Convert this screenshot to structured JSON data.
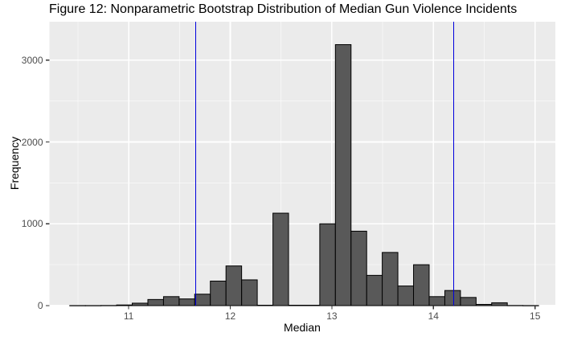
{
  "title": "Figure 12: Nonparametric Bootstrap Distribution of Median Gun Violence Incidents",
  "axes": {
    "x_label": "Median",
    "y_label": "Frequency"
  },
  "chart_data": {
    "type": "bar",
    "subtype": "histogram",
    "title": "Figure 12: Nonparametric Bootstrap Distribution of Median Gun Violence Incidents",
    "xlabel": "Median",
    "ylabel": "Frequency",
    "grid": "on",
    "legend": "none",
    "xlim": [
      10.22,
      15.2
    ],
    "ylim": [
      0,
      3470
    ],
    "bin_width": 0.1538,
    "bin_starts": [
      10.42,
      10.574,
      10.728,
      10.881,
      11.035,
      11.189,
      11.343,
      11.497,
      11.65,
      11.804,
      11.958,
      12.112,
      12.266,
      12.42,
      12.573,
      12.727,
      12.881,
      13.035,
      13.189,
      13.343,
      13.496,
      13.65,
      13.804,
      13.958,
      14.112,
      14.266,
      14.42,
      14.573,
      14.727,
      14.881
    ],
    "counts": [
      1,
      1,
      2,
      8,
      30,
      75,
      110,
      82,
      140,
      300,
      485,
      315,
      5,
      1130,
      5,
      5,
      1000,
      3190,
      910,
      370,
      650,
      240,
      500,
      110,
      185,
      100,
      15,
      35,
      2,
      1
    ],
    "x_ticks": [
      "11",
      "12",
      "13",
      "14",
      "15"
    ],
    "x_tick_values": [
      11,
      12,
      13,
      14,
      15
    ],
    "x_minor_ticks": [
      10.5,
      11.5,
      12.5,
      13.5,
      14.5
    ],
    "y_ticks": [
      "0",
      "1000",
      "2000",
      "3000"
    ],
    "y_tick_values": [
      0,
      1000,
      2000,
      3000
    ],
    "y_minor_ticks": [
      500,
      1500,
      2500
    ],
    "vlines": {
      "values": [
        11.66,
        14.2
      ],
      "role": "bootstrap-confidence-interval-bounds",
      "color": "#0000DD"
    },
    "colors": {
      "bar_fill": "#595959",
      "bar_stroke": "#000000",
      "panel_bg": "#EBEBEB",
      "grid_major": "#FFFFFF",
      "grid_minor": "#FFFFFF",
      "tick_mark": "#333333",
      "tick_label": "#4D4D4D",
      "text": "#000000",
      "page_bg": "#FFFFFF"
    }
  }
}
